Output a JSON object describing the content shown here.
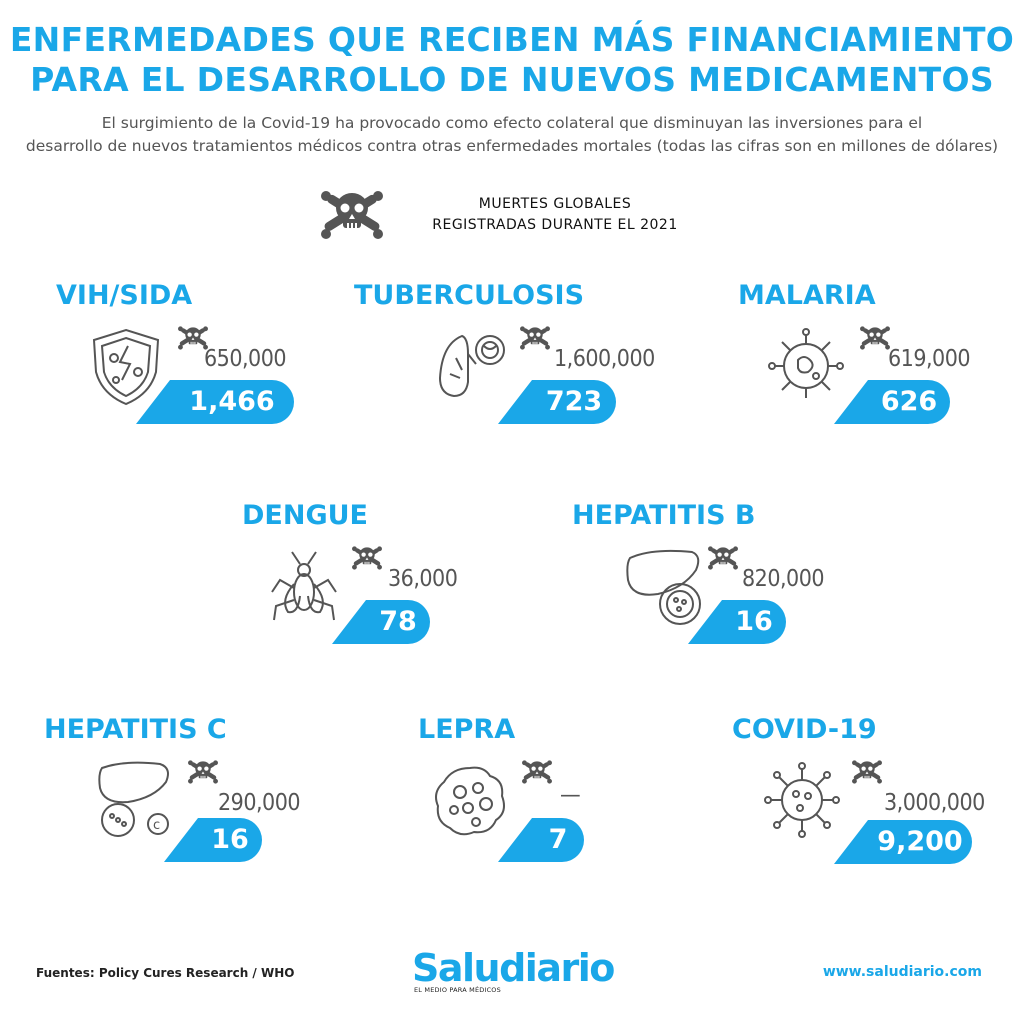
{
  "title": {
    "line1": "ENFERMEDADES QUE RECIBEN MÁS FINANCIAMIENTO",
    "line2": "PARA EL DESARROLLO DE NUEVOS MEDICAMENTOS"
  },
  "subtitle": {
    "line1": "El surgimiento de la Covid-19 ha provocado como efecto colateral que disminuyan las inversiones para el",
    "line2": "desarrollo de nuevos tratamientos médicos contra otras enfermedades mortales (todas las cifras son en millones de dólares)"
  },
  "legend": {
    "line1": "MUERTES GLOBALES",
    "line2": "REGISTRADAS DURANTE EL 2021",
    "icon": "skull-crossbones-icon"
  },
  "diseases": [
    {
      "name": "VIH/SIDA",
      "deaths": "650,000",
      "funding": "1,466",
      "icon": "shield-virus-icon"
    },
    {
      "name": "TUBERCULOSIS",
      "deaths": "1,600,000",
      "funding": "723",
      "icon": "lungs-icon"
    },
    {
      "name": "MALARIA",
      "deaths": "619,000",
      "funding": "626",
      "icon": "parasite-cell-icon"
    },
    {
      "name": "DENGUE",
      "deaths": "36,000",
      "funding": "78",
      "icon": "mosquito-icon"
    },
    {
      "name": "HEPATITIS B",
      "deaths": "820,000",
      "funding": "16",
      "icon": "liver-icon"
    },
    {
      "name": "HEPATITIS C",
      "deaths": "290,000",
      "funding": "16",
      "icon": "liver-c-icon"
    },
    {
      "name": "LEPRA",
      "deaths": "—",
      "funding": "7",
      "icon": "bacteria-cluster-icon"
    },
    {
      "name": "COVID-19",
      "deaths": "3,000,000",
      "funding": "9,200",
      "icon": "coronavirus-icon"
    }
  ],
  "footer": {
    "sources": "Fuentes: Policy Cures Research / WHO",
    "brand": "Saludiario",
    "tagline": "EL MEDIO PARA MÉDICOS",
    "website": "www.saludiario.com"
  },
  "colors": {
    "accent": "#1aa7e8",
    "icon": "#555555"
  }
}
